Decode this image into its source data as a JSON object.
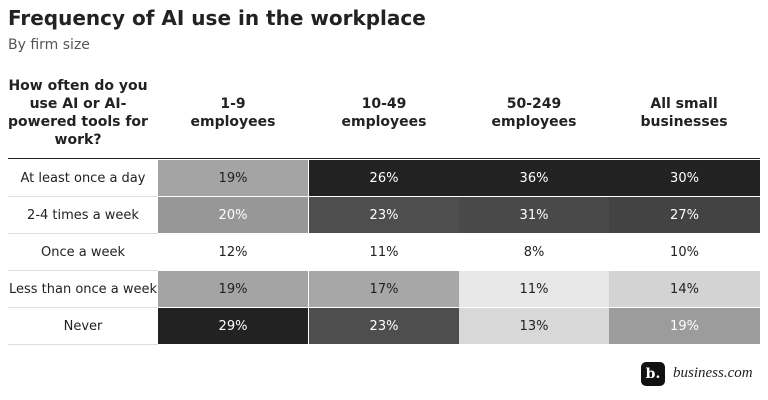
{
  "chart_data": {
    "type": "heatmap",
    "title": "Frequency of AI use in the workplace",
    "subtitle": "By firm size",
    "corner_label": "How often do you use AI or AI-powered tools for work?",
    "columns": [
      "1-9 employees",
      "10-49 employees",
      "50-249 employees",
      "All small businesses"
    ],
    "rows": [
      "At least once a day",
      "2-4 times a week",
      "Once a week",
      "Less than once a week",
      "Never"
    ],
    "values": [
      [
        19,
        26,
        36,
        30
      ],
      [
        20,
        23,
        31,
        27
      ],
      [
        12,
        11,
        8,
        10
      ],
      [
        19,
        17,
        11,
        14
      ],
      [
        29,
        23,
        13,
        19
      ]
    ],
    "value_labels": [
      [
        "19%",
        "26%",
        "36%",
        "30%"
      ],
      [
        "20%",
        "23%",
        "31%",
        "27%"
      ],
      [
        "12%",
        "11%",
        "8%",
        "10%"
      ],
      [
        "19%",
        "17%",
        "11%",
        "14%"
      ],
      [
        "29%",
        "23%",
        "13%",
        "19%"
      ]
    ],
    "color_scale": "per column",
    "source": {
      "logo": "b.",
      "text": "business.com"
    }
  }
}
